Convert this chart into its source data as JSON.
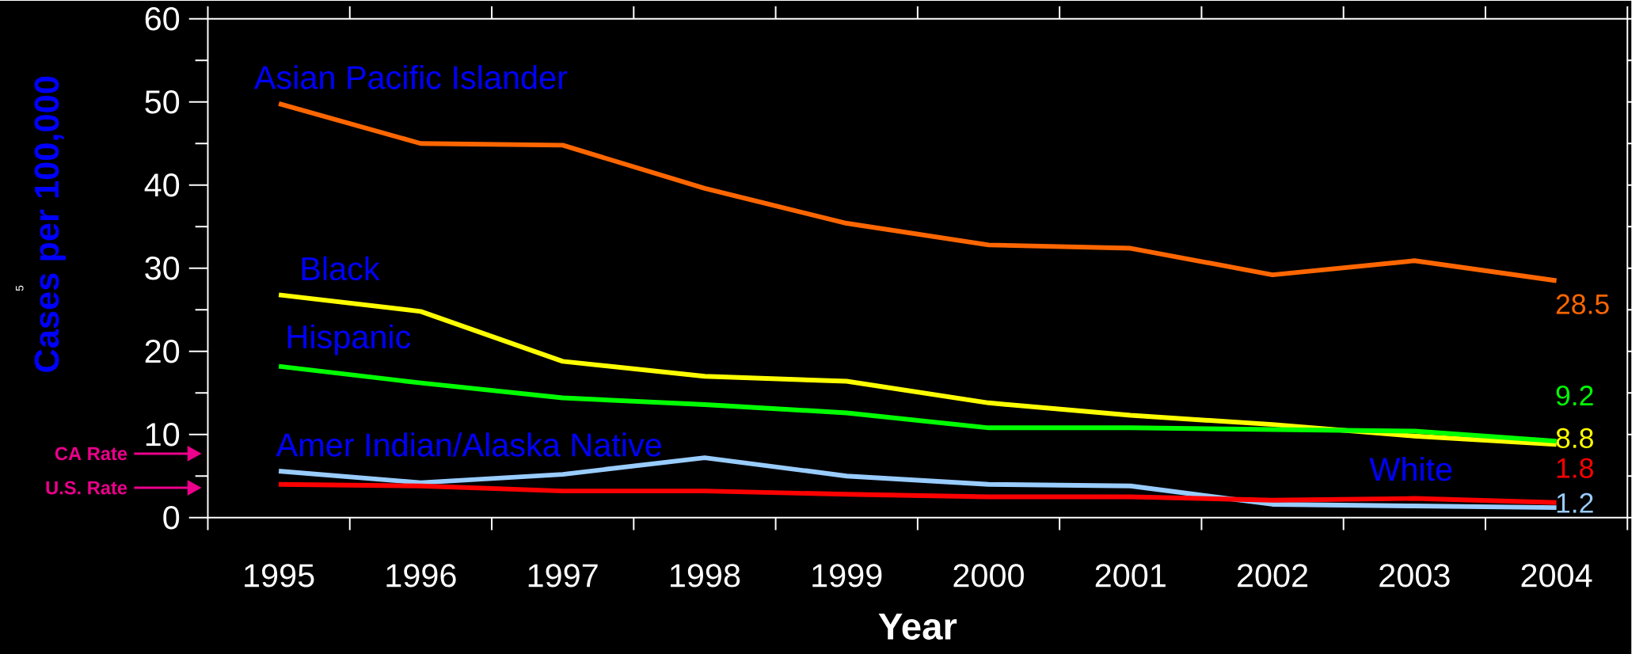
{
  "chart_data": {
    "type": "line",
    "xlabel": "Year",
    "ylabel": "Cases per 100,000",
    "categories": [
      "1995",
      "1996",
      "1997",
      "1998",
      "1999",
      "2000",
      "2001",
      "2002",
      "2003",
      "2004"
    ],
    "ylim": [
      0,
      60
    ],
    "yticks": [
      0,
      10,
      20,
      30,
      40,
      50,
      60
    ],
    "series": [
      {
        "name": "Asian Pacific Islander",
        "color": "#ff6600",
        "values": [
          49.8,
          45.0,
          44.8,
          39.6,
          35.4,
          32.8,
          32.4,
          29.2,
          30.9,
          28.5
        ],
        "value_labels": [
          null,
          null,
          null,
          null,
          null,
          null,
          null,
          null,
          null,
          "28.5"
        ]
      },
      {
        "name": "Black",
        "color": "#ffff00",
        "values": [
          26.8,
          24.8,
          18.8,
          17.0,
          16.4,
          13.8,
          12.3,
          11.2,
          9.8,
          8.8
        ],
        "value_labels": [
          null,
          null,
          null,
          null,
          null,
          null,
          null,
          null,
          null,
          "8.8"
        ]
      },
      {
        "name": "Hispanic",
        "color": "#00ff00",
        "values": [
          18.2,
          16.2,
          14.4,
          13.6,
          12.6,
          10.8,
          10.8,
          10.6,
          10.4,
          9.2
        ],
        "value_labels": [
          null,
          null,
          null,
          null,
          null,
          null,
          null,
          null,
          null,
          "9.2"
        ]
      },
      {
        "name": "Amer Indian/Alaska Native",
        "color": "#99ccff",
        "values": [
          5.6,
          4.2,
          5.2,
          7.2,
          5.0,
          4.0,
          3.8,
          1.6,
          1.4,
          1.2
        ],
        "value_labels": [
          null,
          null,
          null,
          null,
          null,
          null,
          null,
          null,
          null,
          "1.2"
        ]
      },
      {
        "name": "White",
        "color": "#ff0000",
        "values": [
          4.0,
          3.8,
          3.2,
          3.2,
          2.8,
          2.5,
          2.5,
          2.1,
          2.3,
          1.8
        ],
        "value_labels": [
          null,
          null,
          null,
          null,
          null,
          null,
          null,
          null,
          null,
          "1.8"
        ]
      }
    ],
    "annotations": [
      "CA Rate",
      "U.S. Rate",
      "5"
    ]
  }
}
